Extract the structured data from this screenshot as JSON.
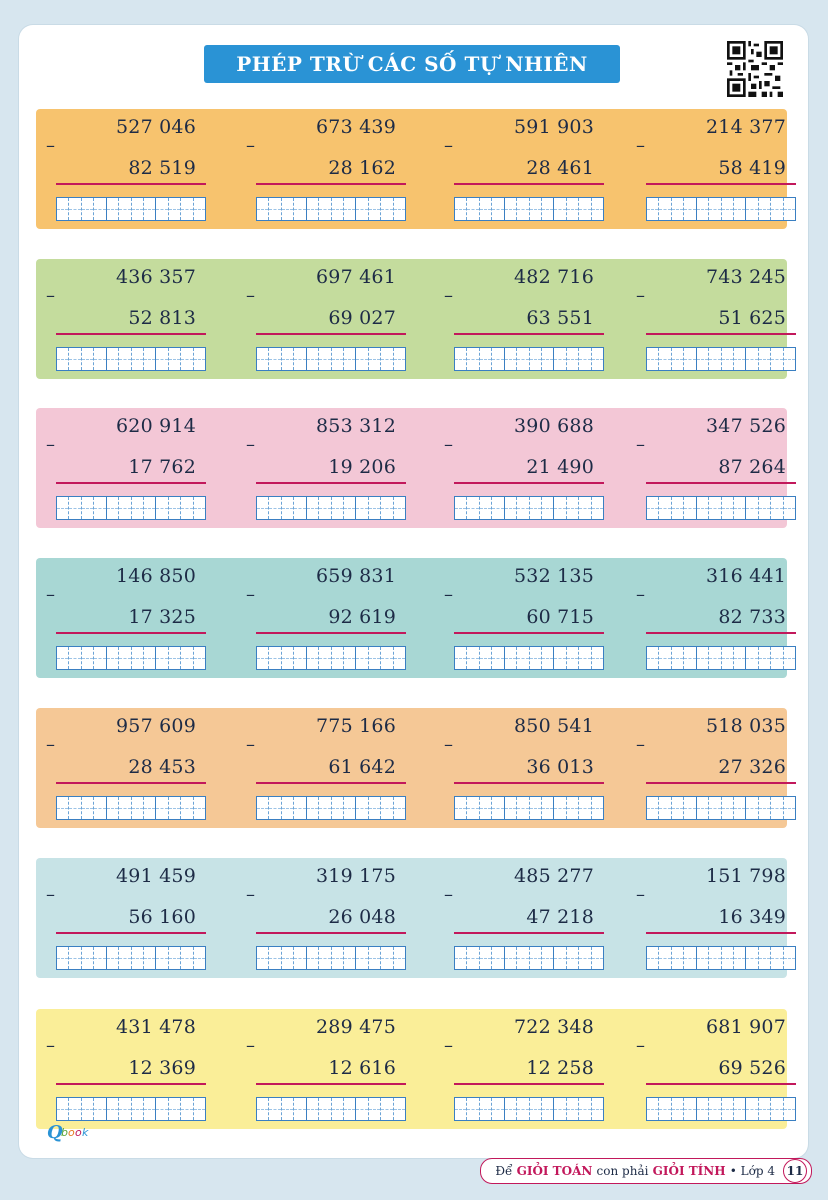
{
  "title": "PHÉP TRỪ CÁC SỐ TỰ NHIÊN",
  "colors": {
    "band_colors": [
      "#f7c36e",
      "#c4dc9d",
      "#f3c7d6",
      "#a8d7d4",
      "#f5c896",
      "#c7e3e6",
      "#faee98"
    ],
    "accent_line": "#c2185b",
    "title_bg": "#2a93d5"
  },
  "bands": [
    {
      "problems": [
        {
          "top": "527 046",
          "bottom": "82 519"
        },
        {
          "top": "673 439",
          "bottom": "28 162"
        },
        {
          "top": "591 903",
          "bottom": "28 461"
        },
        {
          "top": "214 377",
          "bottom": "58 419"
        }
      ]
    },
    {
      "problems": [
        {
          "top": "436 357",
          "bottom": "52 813"
        },
        {
          "top": "697 461",
          "bottom": "69 027"
        },
        {
          "top": "482 716",
          "bottom": "63 551"
        },
        {
          "top": "743 245",
          "bottom": "51 625"
        }
      ]
    },
    {
      "problems": [
        {
          "top": "620 914",
          "bottom": "17 762"
        },
        {
          "top": "853 312",
          "bottom": "19 206"
        },
        {
          "top": "390 688",
          "bottom": "21 490"
        },
        {
          "top": "347 526",
          "bottom": "87 264"
        }
      ]
    },
    {
      "problems": [
        {
          "top": "146 850",
          "bottom": "17 325"
        },
        {
          "top": "659 831",
          "bottom": "92 619"
        },
        {
          "top": "532 135",
          "bottom": "60 715"
        },
        {
          "top": "316 441",
          "bottom": "82 733"
        }
      ]
    },
    {
      "problems": [
        {
          "top": "957 609",
          "bottom": "28 453"
        },
        {
          "top": "775 166",
          "bottom": "61 642"
        },
        {
          "top": "850 541",
          "bottom": "36 013"
        },
        {
          "top": "518 035",
          "bottom": "27 326"
        }
      ]
    },
    {
      "problems": [
        {
          "top": "491 459",
          "bottom": "56 160"
        },
        {
          "top": "319 175",
          "bottom": "26 048"
        },
        {
          "top": "485 277",
          "bottom": "47 218"
        },
        {
          "top": "151 798",
          "bottom": "16 349"
        }
      ]
    },
    {
      "problems": [
        {
          "top": "431 478",
          "bottom": "12 369"
        },
        {
          "top": "289 475",
          "bottom": "12 616"
        },
        {
          "top": "722 348",
          "bottom": "12 258"
        },
        {
          "top": "681 907",
          "bottom": "69 526"
        }
      ]
    }
  ],
  "minus_sign": "–",
  "footer": {
    "part1": "Để",
    "part2": "GIỎI TOÁN",
    "part3": "con phải",
    "part4": "GIỎI TÍNH",
    "part5": "• Lớp 4",
    "page_number": "11"
  },
  "logo_text": "Qbook"
}
